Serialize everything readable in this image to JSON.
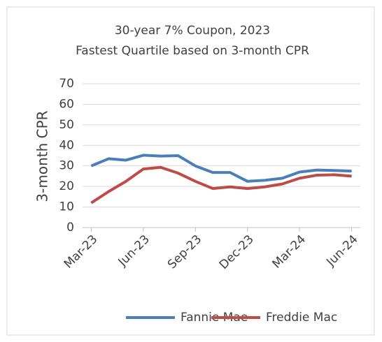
{
  "chart_data": {
    "type": "line",
    "title": "30-year 7% Coupon, 2023",
    "subtitle": "Fastest Quartile based on 3-month CPR",
    "y_label": "3-month CPR",
    "categories": [
      "Mar-23",
      null,
      null,
      "Jun-23",
      null,
      null,
      "Sep-23",
      null,
      null,
      "Dec-23",
      null,
      null,
      "Mar-24",
      null,
      null,
      "Jun-24"
    ],
    "series": [
      {
        "name": "Fannie Mae",
        "color": "#4a7ebb",
        "values": [
          30,
          33.5,
          32.8,
          35.2,
          34.8,
          35,
          30,
          26.8,
          26.8,
          22.5,
          23,
          24,
          27,
          28,
          27.8,
          27.5
        ]
      },
      {
        "name": "Freddie Mac",
        "color": "#be4b48",
        "values": [
          12,
          17.5,
          22.5,
          28.5,
          29.3,
          26.5,
          22.5,
          19,
          19.8,
          19,
          19.8,
          21.2,
          24,
          25.5,
          25.7,
          25
        ]
      }
    ],
    "ylim": [
      0,
      70
    ],
    "yticks": [
      0,
      10,
      20,
      30,
      40,
      50,
      60,
      70
    ],
    "grid": true,
    "legend": "bottom"
  }
}
